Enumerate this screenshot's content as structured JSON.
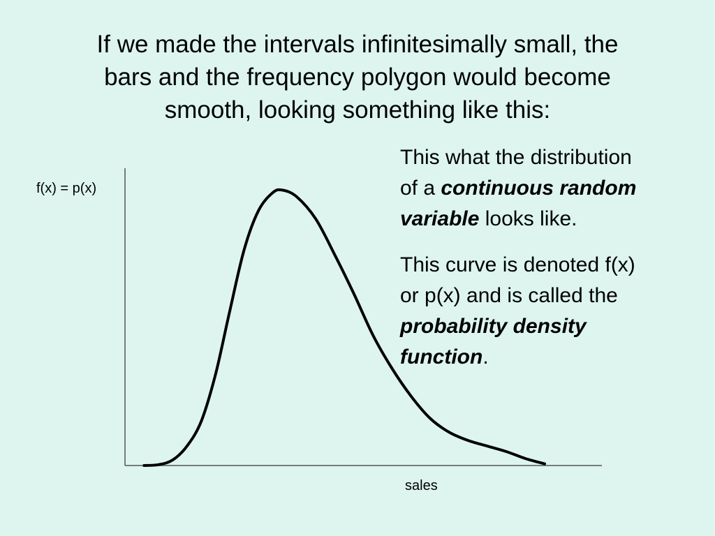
{
  "slide": {
    "title_lines": [
      "If we made the intervals infinitesimally small, the",
      "bars and the frequency polygon would become",
      "smooth, looking something like this:"
    ],
    "paragraph1": {
      "line1": "This what the distribution",
      "line2_pre": "of a ",
      "line2_em": "continuous random",
      "line3_em": "variable",
      "line3_post": " looks like."
    },
    "paragraph2": {
      "line1": "This curve is denoted f(x)",
      "line2": "or p(x) and is called the",
      "line3_em": "probability density",
      "line4_em": "function",
      "line4_post": "."
    }
  },
  "chart_data": {
    "type": "line",
    "ylabel": "f(x) = p(x)",
    "xlabel": "sales",
    "grid": false,
    "xlim": [
      0,
      100
    ],
    "ylim": [
      0,
      100
    ],
    "series": [
      {
        "points": [
          [
            4,
            0
          ],
          [
            7,
            0.3
          ],
          [
            10,
            2
          ],
          [
            13,
            7
          ],
          [
            16,
            16
          ],
          [
            19,
            33
          ],
          [
            22,
            56
          ],
          [
            25,
            78
          ],
          [
            28,
            92
          ],
          [
            31,
            98.5
          ],
          [
            33,
            99.4
          ],
          [
            36,
            97
          ],
          [
            40,
            89
          ],
          [
            44,
            76
          ],
          [
            48,
            62
          ],
          [
            52,
            47
          ],
          [
            56,
            35
          ],
          [
            60,
            25
          ],
          [
            64,
            17
          ],
          [
            68,
            12
          ],
          [
            72,
            9
          ],
          [
            76,
            7
          ],
          [
            80,
            5
          ],
          [
            84,
            2.5
          ],
          [
            88,
            0.6
          ]
        ]
      }
    ]
  }
}
